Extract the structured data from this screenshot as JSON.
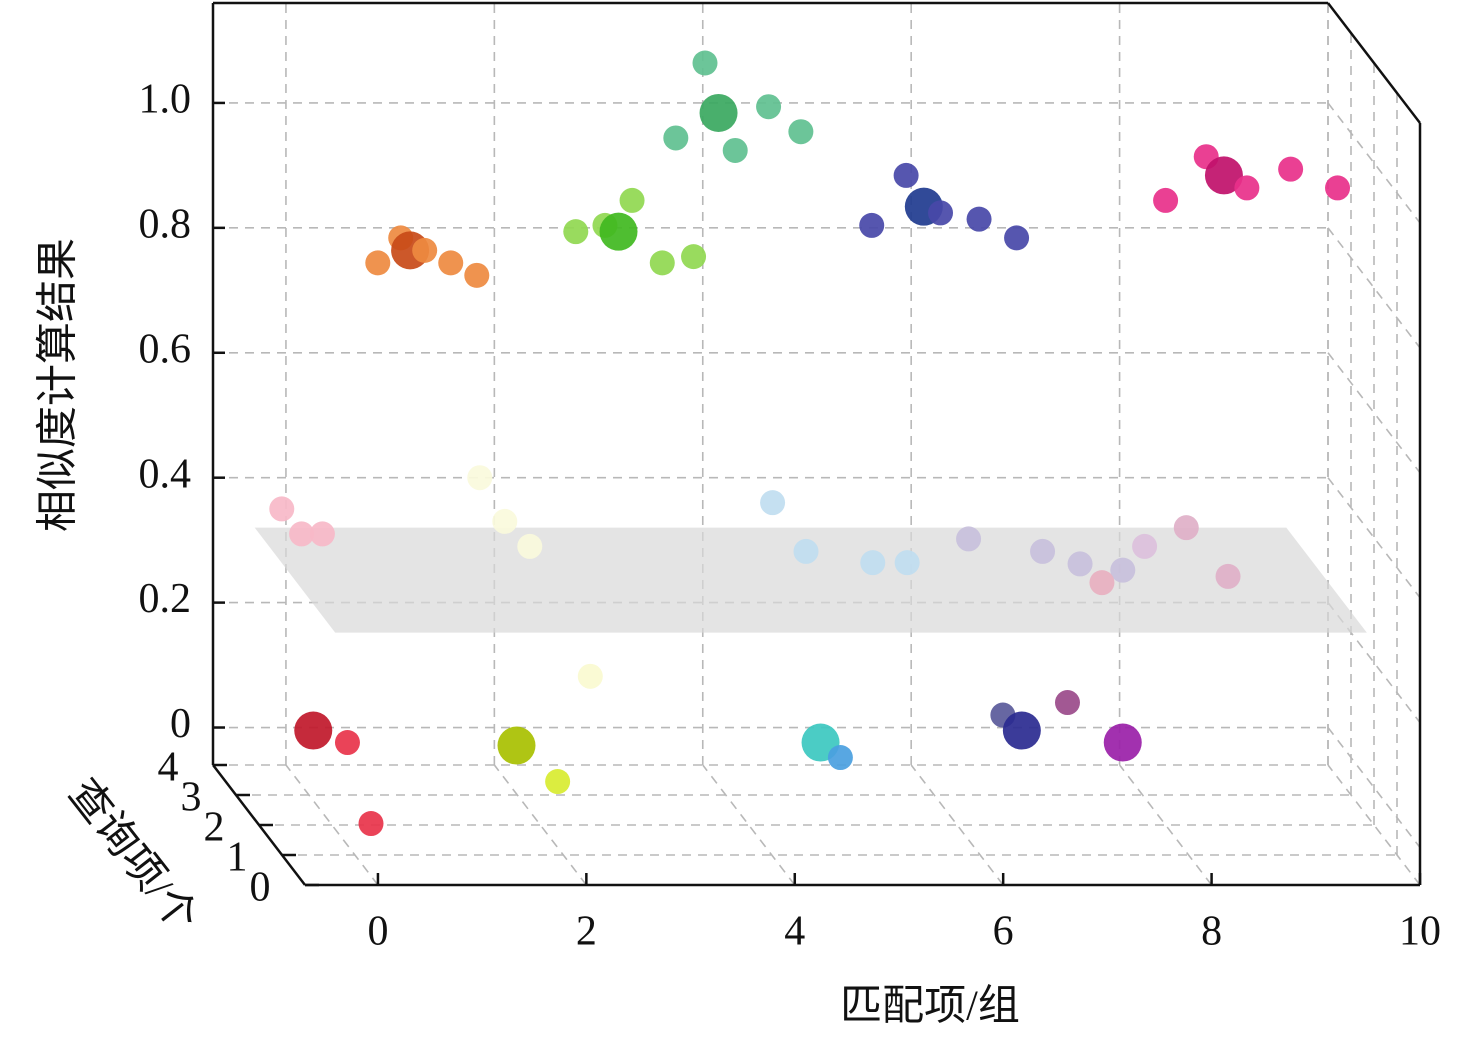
{
  "chart_data": {
    "type": "scatter3d",
    "x_label": "匹配项/组",
    "y_label": "查询项/个",
    "z_label": "相似度计算结果",
    "xlim": [
      -0.7,
      10
    ],
    "xticks": [
      0,
      2,
      4,
      6,
      8,
      10
    ],
    "ylim": [
      0,
      4
    ],
    "yticks": [
      0,
      1,
      2,
      3,
      4
    ],
    "zlim": [
      -0.06,
      1.16
    ],
    "zticks": [
      0,
      0.2,
      0.4,
      0.6,
      0.8,
      {
        "value": 1,
        "label": "1.0"
      }
    ],
    "grid": true,
    "plane": {
      "z": 0.32,
      "x": [
        -0.3,
        9.6
      ],
      "y": [
        0.5,
        4
      ],
      "color": "#d9d9d9"
    },
    "points": [
      {
        "x": 0.24,
        "y": 3.9,
        "z": 0,
        "size": 2,
        "color": "#c0182a"
      },
      {
        "x": 0.48,
        "y": 3.5,
        "z": 0,
        "size": 1,
        "color": "#e8334a"
      },
      {
        "x": 0.11,
        "y": 0.8,
        "z": 0,
        "size": 1,
        "color": "#e8334a"
      },
      {
        "x": 2.08,
        "y": 3.4,
        "z": 0,
        "size": 2,
        "color": "#a8c000"
      },
      {
        "x": 2.21,
        "y": 2.2,
        "z": 0,
        "size": 1,
        "color": "#d8ec30"
      },
      {
        "x": 2.7,
        "y": 3,
        "z": 0.13,
        "size": 1,
        "color": "#fafad0"
      },
      {
        "x": 5.02,
        "y": 3.5,
        "z": 0,
        "size": 2,
        "color": "#3cc8c0"
      },
      {
        "x": 5.1,
        "y": 3,
        "z": 0,
        "size": 1,
        "color": "#4a9fe0"
      },
      {
        "x": 6.88,
        "y": 4,
        "z": 0.02,
        "size": 1,
        "color": "#5a5a9a"
      },
      {
        "x": 7.5,
        "y": 4,
        "z": 0.04,
        "size": 1,
        "color": "#9a4a8a"
      },
      {
        "x": 7.04,
        "y": 3.9,
        "z": 0,
        "size": 2,
        "color": "#2a2a90"
      },
      {
        "x": 7.92,
        "y": 3.5,
        "z": 0,
        "size": 2,
        "color": "#9a20a8"
      },
      {
        "x": -0.04,
        "y": 4,
        "z": 0.35,
        "size": 1,
        "color": "#f7b8c8"
      },
      {
        "x": 0.15,
        "y": 4,
        "z": 0.31,
        "size": 1,
        "color": "#f7b8c8"
      },
      {
        "x": 0.35,
        "y": 4,
        "z": 0.31,
        "size": 1,
        "color": "#f7b8c8"
      },
      {
        "x": 1.86,
        "y": 4,
        "z": 0.4,
        "size": 1,
        "color": "#fafadc"
      },
      {
        "x": 2.1,
        "y": 4,
        "z": 0.33,
        "size": 1,
        "color": "#fafadc"
      },
      {
        "x": 2.34,
        "y": 4,
        "z": 0.29,
        "size": 1,
        "color": "#fafadc"
      },
      {
        "x": 4.67,
        "y": 4,
        "z": 0.36,
        "size": 1,
        "color": "#c0ddf0"
      },
      {
        "x": 4.77,
        "y": 3,
        "z": 0.33,
        "size": 1,
        "color": "#c0ddf0"
      },
      {
        "x": 5.19,
        "y": 2,
        "z": 0.36,
        "size": 1,
        "color": "#c0ddf0"
      },
      {
        "x": 5.52,
        "y": 2,
        "z": 0.36,
        "size": 1,
        "color": "#c0ddf0"
      },
      {
        "x": 6.33,
        "y": 3,
        "z": 0.35,
        "size": 1,
        "color": "#c8c0dc"
      },
      {
        "x": 7.04,
        "y": 3,
        "z": 0.33,
        "size": 1,
        "color": "#c8c0dc"
      },
      {
        "x": 7.4,
        "y": 3,
        "z": 0.31,
        "size": 1,
        "color": "#c8c0dc"
      },
      {
        "x": 7.81,
        "y": 3,
        "z": 0.3,
        "size": 1,
        "color": "#c8c0dc"
      },
      {
        "x": 8.24,
        "y": 4,
        "z": 0.29,
        "size": 1,
        "color": "#dcc0dc"
      },
      {
        "x": 7.61,
        "y": 3,
        "z": 0.28,
        "size": 1,
        "color": "#e8b0c0"
      },
      {
        "x": 8.64,
        "y": 4,
        "z": 0.32,
        "size": 1,
        "color": "#e0b0c8"
      },
      {
        "x": 8.82,
        "y": 3,
        "z": 0.29,
        "size": 1,
        "color": "#e0b0c8"
      },
      {
        "x": 0.44,
        "y": 2,
        "z": 0.84,
        "size": 1,
        "color": "#ee8a40"
      },
      {
        "x": 0.66,
        "y": 2,
        "z": 0.88,
        "size": 1,
        "color": "#ee8a40"
      },
      {
        "x": 0.75,
        "y": 2,
        "z": 0.86,
        "size": 2,
        "color": "#c84a18"
      },
      {
        "x": 0.89,
        "y": 2,
        "z": 0.86,
        "size": 1,
        "color": "#ee8a40"
      },
      {
        "x": 1.14,
        "y": 2,
        "z": 0.84,
        "size": 1,
        "color": "#ee8a40"
      },
      {
        "x": 1.39,
        "y": 2,
        "z": 0.82,
        "size": 1,
        "color": "#ee8a40"
      },
      {
        "x": 2.34,
        "y": 2,
        "z": 0.89,
        "size": 1,
        "color": "#90d850"
      },
      {
        "x": 2.62,
        "y": 2,
        "z": 0.9,
        "size": 1,
        "color": "#90d850"
      },
      {
        "x": 2.88,
        "y": 2,
        "z": 0.94,
        "size": 1,
        "color": "#90d850"
      },
      {
        "x": 2.75,
        "y": 2,
        "z": 0.89,
        "size": 2,
        "color": "#40b820"
      },
      {
        "x": 3.17,
        "y": 2,
        "z": 0.84,
        "size": 1,
        "color": "#90d850"
      },
      {
        "x": 3.47,
        "y": 2,
        "z": 0.85,
        "size": 1,
        "color": "#90d850"
      },
      {
        "x": 3.58,
        "y": 2,
        "z": 1.16,
        "size": 1,
        "color": "#60c090"
      },
      {
        "x": 3.3,
        "y": 2,
        "z": 1.04,
        "size": 1,
        "color": "#60c090"
      },
      {
        "x": 3.87,
        "y": 2,
        "z": 1.02,
        "size": 1,
        "color": "#60c090"
      },
      {
        "x": 4.19,
        "y": 2,
        "z": 1.09,
        "size": 1,
        "color": "#60c090"
      },
      {
        "x": 4.5,
        "y": 2,
        "z": 1.05,
        "size": 1,
        "color": "#60c090"
      },
      {
        "x": 3.71,
        "y": 2,
        "z": 1.08,
        "size": 2,
        "color": "#3aa860"
      },
      {
        "x": 5.51,
        "y": 2,
        "z": 0.98,
        "size": 1,
        "color": "#4848a8"
      },
      {
        "x": 5.18,
        "y": 2,
        "z": 0.9,
        "size": 1,
        "color": "#4848a8"
      },
      {
        "x": 5.68,
        "y": 2,
        "z": 0.93,
        "size": 2,
        "color": "#1f3b8f"
      },
      {
        "x": 5.84,
        "y": 2,
        "z": 0.92,
        "size": 1,
        "color": "#4848a8"
      },
      {
        "x": 6.21,
        "y": 2,
        "z": 0.91,
        "size": 1,
        "color": "#4848a8"
      },
      {
        "x": 6.57,
        "y": 2,
        "z": 0.88,
        "size": 1,
        "color": "#4848a8"
      },
      {
        "x": 8.39,
        "y": 2,
        "z": 1.01,
        "size": 1,
        "color": "#e8308a"
      },
      {
        "x": 8.0,
        "y": 2,
        "z": 0.94,
        "size": 1,
        "color": "#e8308a"
      },
      {
        "x": 8.56,
        "y": 2,
        "z": 0.98,
        "size": 2,
        "color": "#c0106a"
      },
      {
        "x": 8.78,
        "y": 2,
        "z": 0.96,
        "size": 1,
        "color": "#e8308a"
      },
      {
        "x": 9.2,
        "y": 2,
        "z": 0.99,
        "size": 1,
        "color": "#e8308a"
      },
      {
        "x": 9.65,
        "y": 2,
        "z": 0.96,
        "size": 1,
        "color": "#e8308a"
      }
    ]
  }
}
